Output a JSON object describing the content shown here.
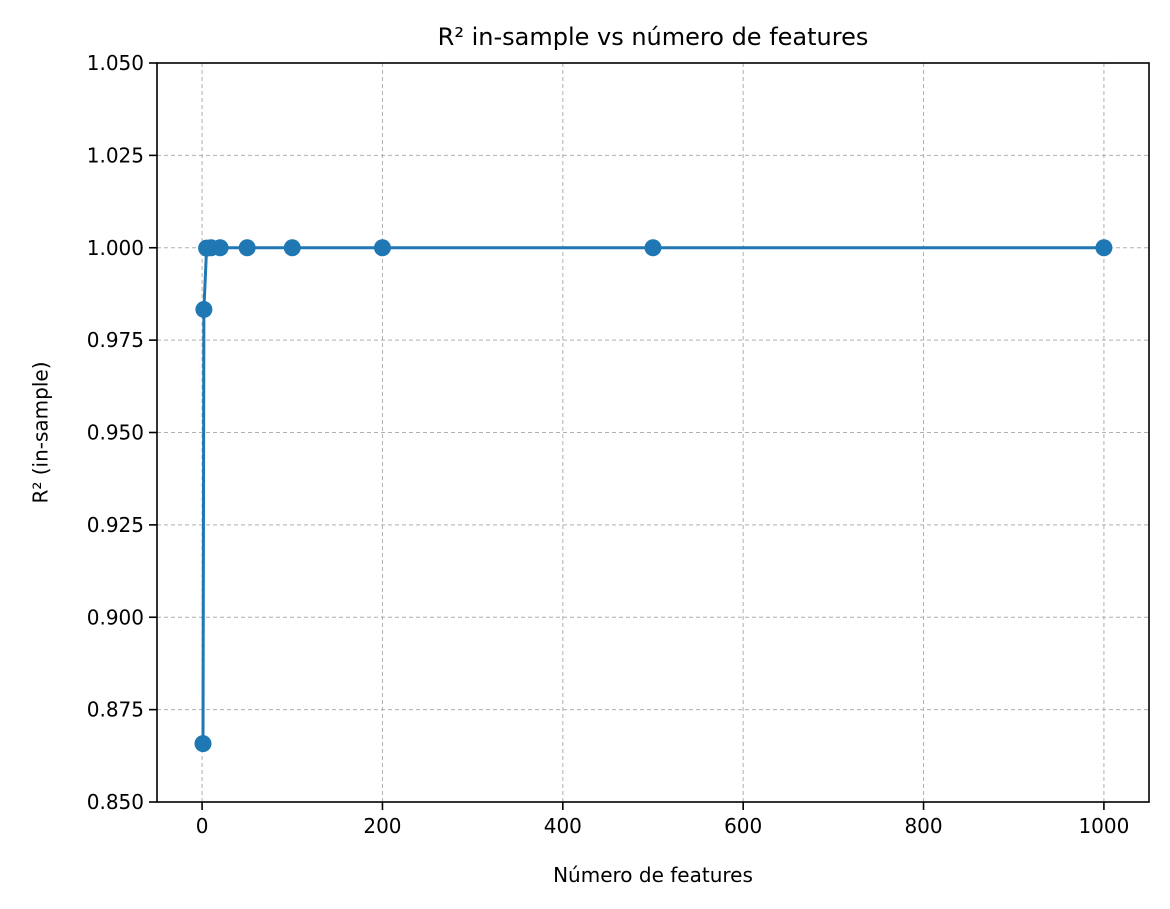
{
  "chart_data": {
    "type": "line",
    "title": "R² in-sample vs número de features",
    "xlabel": "Número de features",
    "ylabel": "R² (in-sample)",
    "xlim": [
      -50,
      1050
    ],
    "ylim": [
      0.85,
      1.05
    ],
    "x_ticks": [
      0,
      200,
      400,
      600,
      800,
      1000
    ],
    "x_tick_labels": [
      "0",
      "200",
      "400",
      "600",
      "800",
      "1000"
    ],
    "y_ticks": [
      0.85,
      0.875,
      0.9,
      0.925,
      0.95,
      0.975,
      1.0,
      1.025,
      1.05
    ],
    "y_tick_labels": [
      "0.850",
      "0.875",
      "0.900",
      "0.925",
      "0.950",
      "0.975",
      "1.000",
      "1.025",
      "1.050"
    ],
    "grid": true,
    "grid_style": "dashed",
    "marker": "circle",
    "series": [
      {
        "color": "#1f77b4",
        "x": [
          1,
          2,
          5,
          10,
          20,
          50,
          100,
          200,
          500,
          1000
        ],
        "y": [
          0.8658,
          0.9833,
          0.9999,
          1.0,
          1.0,
          1.0,
          1.0,
          1.0,
          1.0,
          1.0
        ]
      }
    ]
  }
}
